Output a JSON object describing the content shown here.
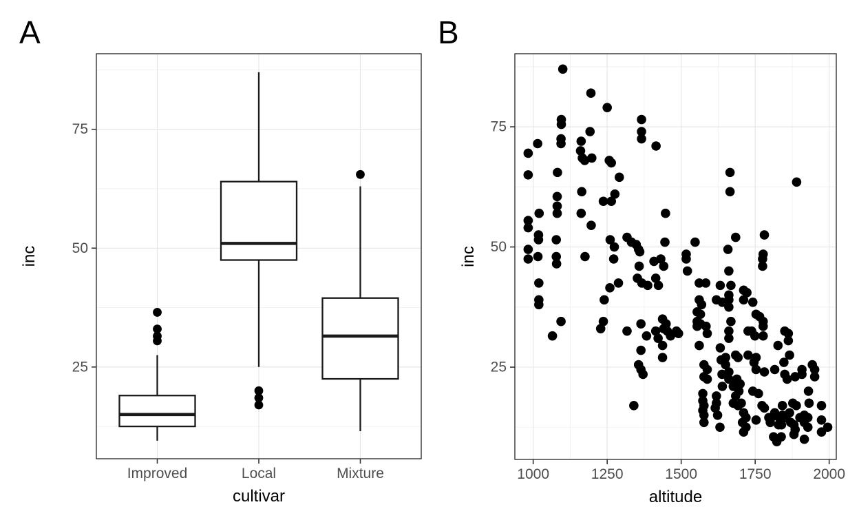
{
  "style": {
    "background": "#ffffff",
    "point_color": "#000000",
    "box_stroke": "#1a1a1a",
    "box_fill": "#ffffff",
    "panel_border": "#333333",
    "grid_major": "#e4e4e4",
    "grid_minor": "#f2f2f2",
    "tick_mark_color": "#333333",
    "tick_label_color": "#4d4d4d",
    "axis_title_color": "#000000",
    "panel_label_color": "#000000"
  },
  "chart_data": [
    {
      "type": "boxplot",
      "panel_label": "A",
      "xlabel": "cultivar",
      "ylabel": "inc",
      "categories": [
        "Improved",
        "Local",
        "Mixture"
      ],
      "y_ticks": [
        25,
        50,
        75
      ],
      "y_minor": [
        12.5,
        37.5,
        62.5,
        87.5
      ],
      "ylim": [
        5.7,
        90.9
      ],
      "grid": "on",
      "legend": "none",
      "boxes": [
        {
          "category": "Improved",
          "whisker_low": 9.5,
          "q1": 12.5,
          "median": 15,
          "q3": 19,
          "whisker_high": 27.5,
          "outliers": [
            30.5,
            31.5,
            33,
            36.5
          ]
        },
        {
          "category": "Local",
          "whisker_low": 25,
          "q1": 47.5,
          "median": 51,
          "q3": 64,
          "whisker_high": 87,
          "outliers": [
            17,
            18.5,
            20
          ]
        },
        {
          "category": "Mixture",
          "whisker_low": 11.5,
          "q1": 22.5,
          "median": 31.5,
          "q3": 39.5,
          "whisker_high": 63,
          "outliers": [
            65.5
          ]
        }
      ]
    },
    {
      "type": "scatter",
      "panel_label": "B",
      "xlabel": "altitude",
      "ylabel": "inc",
      "x_ticks": [
        1000,
        1250,
        1500,
        1750,
        2000
      ],
      "x_minor": [
        1125,
        1375,
        1625,
        1875
      ],
      "y_ticks": [
        25,
        50,
        75
      ],
      "y_minor": [
        12.5,
        37.5,
        62.5,
        87.5
      ],
      "xlim": [
        938,
        2024
      ],
      "ylim": [
        5.8,
        90.2
      ],
      "grid": "on",
      "legend": "none",
      "points": [
        [
          1100,
          87
        ],
        [
          1195,
          82
        ],
        [
          1250,
          79
        ],
        [
          1095,
          76.5
        ],
        [
          1095,
          75.5
        ],
        [
          1192,
          74
        ],
        [
          1094,
          72.5
        ],
        [
          1094,
          71.5
        ],
        [
          1162,
          72
        ],
        [
          1015,
          71.5
        ],
        [
          983,
          69.5
        ],
        [
          1160,
          70
        ],
        [
          1166,
          68.5
        ],
        [
          1174,
          68
        ],
        [
          1198,
          68.5
        ],
        [
          1257,
          68
        ],
        [
          1264,
          67.5
        ],
        [
          983,
          65
        ],
        [
          1082,
          65.5
        ],
        [
          1291,
          64.5
        ],
        [
          1164,
          61.5
        ],
        [
          1276,
          61
        ],
        [
          1081,
          60.5
        ],
        [
          1237,
          59.5
        ],
        [
          1264,
          59.5
        ],
        [
          1081,
          58.5
        ],
        [
          1081,
          57
        ],
        [
          1020,
          57
        ],
        [
          1162,
          57
        ],
        [
          983,
          55.5
        ],
        [
          983,
          54
        ],
        [
          1196,
          54.5
        ],
        [
          1018,
          52.5
        ],
        [
          1018,
          51.5
        ],
        [
          1078,
          51.5
        ],
        [
          1260,
          51.5
        ],
        [
          1274,
          50
        ],
        [
          983,
          49.5
        ],
        [
          983,
          47.5
        ],
        [
          1016,
          48
        ],
        [
          1078,
          48
        ],
        [
          1079,
          46.5
        ],
        [
          1175,
          48
        ],
        [
          1272,
          47.5
        ],
        [
          1019,
          42.5
        ],
        [
          1019,
          39
        ],
        [
          1019,
          38
        ],
        [
          1259,
          41.5
        ],
        [
          1288,
          42.5
        ],
        [
          1240,
          39
        ],
        [
          1094,
          34.5
        ],
        [
          1065,
          31.5
        ],
        [
          1237,
          34.5
        ],
        [
          1228,
          33
        ],
        [
          1366,
          76.5
        ],
        [
          1366,
          74
        ],
        [
          1366,
          72.5
        ],
        [
          1415,
          71
        ],
        [
          1447,
          57
        ],
        [
          1317,
          52
        ],
        [
          1332,
          51
        ],
        [
          1348,
          50.5
        ],
        [
          1356,
          49.5
        ],
        [
          1360,
          49
        ],
        [
          1445,
          51
        ],
        [
          1547,
          51
        ],
        [
          1517,
          48.5
        ],
        [
          1358,
          46
        ],
        [
          1408,
          47
        ],
        [
          1431,
          47.5
        ],
        [
          1441,
          46
        ],
        [
          1517,
          47.5
        ],
        [
          1352,
          43.5
        ],
        [
          1367,
          42.5
        ],
        [
          1387,
          42
        ],
        [
          1414,
          43.5
        ],
        [
          1423,
          42
        ],
        [
          1521,
          45
        ],
        [
          1561,
          42.5
        ],
        [
          1583,
          42.5
        ],
        [
          1632,
          42
        ],
        [
          1561,
          39
        ],
        [
          1569,
          38
        ],
        [
          1619,
          39
        ],
        [
          1639,
          38.5
        ],
        [
          1554,
          36.5
        ],
        [
          1565,
          36
        ],
        [
          1554,
          34.5
        ],
        [
          1554,
          33.5
        ],
        [
          1565,
          34
        ],
        [
          1437,
          35
        ],
        [
          1449,
          34
        ],
        [
          1364,
          34
        ],
        [
          1317,
          32.5
        ],
        [
          1383,
          31.5
        ],
        [
          1414,
          32.5
        ],
        [
          1422,
          31
        ],
        [
          1441,
          33
        ],
        [
          1453,
          32.5
        ],
        [
          1464,
          31.5
        ],
        [
          1484,
          32.5
        ],
        [
          1491,
          32
        ],
        [
          1584,
          33.5
        ],
        [
          1588,
          32
        ],
        [
          1561,
          29.5
        ],
        [
          1437,
          29.5
        ],
        [
          1364,
          28.5
        ],
        [
          1437,
          27
        ],
        [
          1356,
          25.5
        ],
        [
          1364,
          24.5
        ],
        [
          1371,
          23.5
        ],
        [
          1577,
          25.5
        ],
        [
          1588,
          24.5
        ],
        [
          1577,
          23
        ],
        [
          1588,
          22.5
        ],
        [
          1639,
          21
        ],
        [
          1340,
          17
        ],
        [
          1573,
          19.5
        ],
        [
          1573,
          18
        ],
        [
          1577,
          17
        ],
        [
          1573,
          16
        ],
        [
          1577,
          15
        ],
        [
          1619,
          19
        ],
        [
          1619,
          17.5
        ],
        [
          1615,
          16.5
        ],
        [
          1623,
          15
        ],
        [
          1577,
          13.5
        ],
        [
          1631,
          12.5
        ],
        [
          1650,
          27
        ],
        [
          1650,
          25.5
        ],
        [
          1632,
          29
        ],
        [
          1635,
          26.5
        ],
        [
          1638,
          23.5
        ],
        [
          1665,
          65.5
        ],
        [
          1665,
          61.5
        ],
        [
          1890,
          63.5
        ],
        [
          1684,
          52
        ],
        [
          1781,
          52.5
        ],
        [
          1658,
          49.5
        ],
        [
          1777,
          48.5
        ],
        [
          1775,
          47.5
        ],
        [
          1775,
          46
        ],
        [
          1661,
          45
        ],
        [
          1668,
          42
        ],
        [
          1661,
          40
        ],
        [
          1661,
          39
        ],
        [
          1711,
          41
        ],
        [
          1722,
          40.5
        ],
        [
          1711,
          39
        ],
        [
          1742,
          38.5
        ],
        [
          1661,
          37.5
        ],
        [
          1753,
          36
        ],
        [
          1765,
          35.5
        ],
        [
          1777,
          34.5
        ],
        [
          1777,
          33.5
        ],
        [
          1668,
          34.5
        ],
        [
          1661,
          32.5
        ],
        [
          1661,
          31
        ],
        [
          1726,
          32.5
        ],
        [
          1738,
          32.5
        ],
        [
          1749,
          31.5
        ],
        [
          1777,
          31.5
        ],
        [
          1850,
          32.5
        ],
        [
          1862,
          32
        ],
        [
          1862,
          30.5
        ],
        [
          1827,
          29.5
        ],
        [
          1684,
          27.5
        ],
        [
          1692,
          27
        ],
        [
          1726,
          27.5
        ],
        [
          1753,
          27
        ],
        [
          1746,
          26
        ],
        [
          1753,
          24.5
        ],
        [
          1781,
          24
        ],
        [
          1816,
          24.5
        ],
        [
          1847,
          26
        ],
        [
          1866,
          27.5
        ],
        [
          1850,
          23.5
        ],
        [
          1858,
          22.5
        ],
        [
          1885,
          23
        ],
        [
          1908,
          24.5
        ],
        [
          1943,
          25.5
        ],
        [
          1951,
          24.5
        ],
        [
          1908,
          23.5
        ],
        [
          1951,
          23
        ],
        [
          1661,
          24
        ],
        [
          1661,
          22.5
        ],
        [
          1688,
          22.5
        ],
        [
          1699,
          21.5
        ],
        [
          1676,
          21
        ],
        [
          1695,
          20
        ],
        [
          1742,
          20
        ],
        [
          1761,
          19.5
        ],
        [
          1773,
          17
        ],
        [
          1781,
          16.5
        ],
        [
          1684,
          19
        ],
        [
          1676,
          17.5
        ],
        [
          1692,
          17
        ],
        [
          1703,
          17.5
        ],
        [
          1711,
          15.5
        ],
        [
          1719,
          14.5
        ],
        [
          1707,
          13.5
        ],
        [
          1719,
          12.5
        ],
        [
          1753,
          14
        ],
        [
          1804,
          14.5
        ],
        [
          1816,
          15.5
        ],
        [
          1831,
          14.5
        ],
        [
          1842,
          15
        ],
        [
          1854,
          14.5
        ],
        [
          1866,
          15.5
        ],
        [
          1839,
          13
        ],
        [
          1870,
          13.5
        ],
        [
          1881,
          13
        ],
        [
          1885,
          12
        ],
        [
          1901,
          14.5
        ],
        [
          1916,
          15
        ],
        [
          1928,
          14.5
        ],
        [
          1916,
          13.5
        ],
        [
          1928,
          12.5
        ],
        [
          1812,
          10.5
        ],
        [
          1916,
          10
        ],
        [
          1881,
          11
        ],
        [
          1974,
          17
        ],
        [
          1974,
          14
        ],
        [
          1974,
          11.5
        ],
        [
          1995,
          12.5
        ],
        [
          1932,
          17.5
        ],
        [
          1877,
          17.5
        ],
        [
          1889,
          17
        ],
        [
          1842,
          17
        ],
        [
          1930,
          20
        ],
        [
          1711,
          11.5
        ],
        [
          1796,
          14.5
        ],
        [
          1801,
          13.5
        ],
        [
          1829,
          13
        ],
        [
          1838,
          10.5
        ],
        [
          1823,
          9.5
        ]
      ]
    }
  ]
}
